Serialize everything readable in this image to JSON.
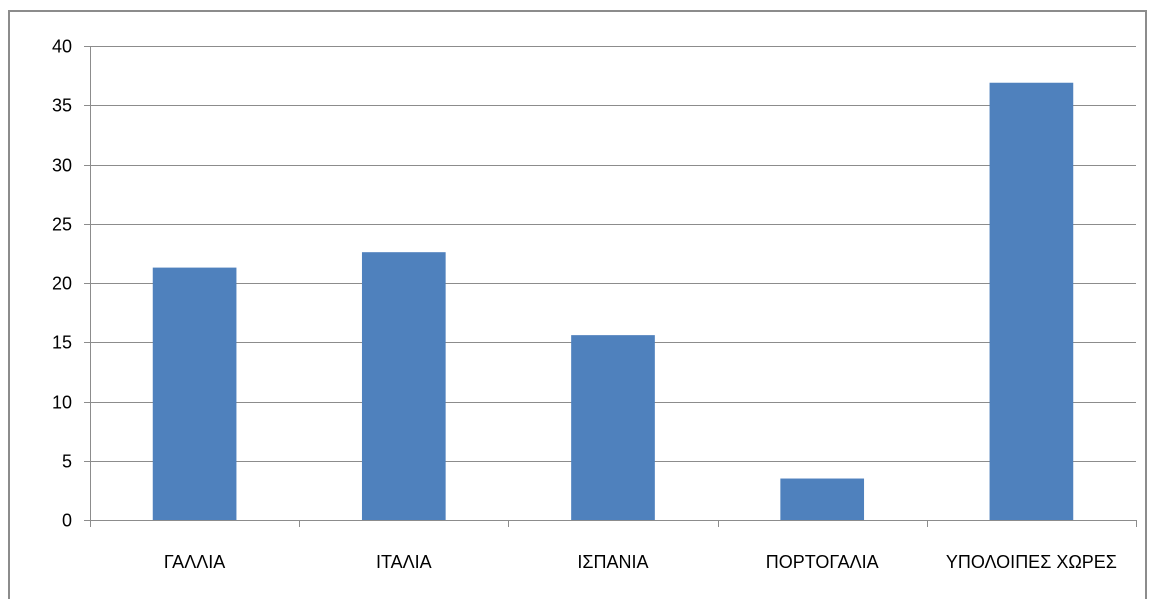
{
  "chart_data": {
    "type": "bar",
    "categories": [
      "ΓΑΛΛΙΑ",
      "ΙΤΑΛΙΑ",
      "ΙΣΠΑΝΙΑ",
      "ΠΟΡΤΟΓΑΛΙΑ",
      "ΥΠΟΛΟΙΠΕΣ ΧΩΡΕΣ"
    ],
    "values": [
      21.3,
      22.6,
      15.6,
      3.5,
      36.9
    ],
    "title": "",
    "xlabel": "",
    "ylabel": "",
    "ylim": [
      0,
      40
    ],
    "yticks": [
      0,
      5,
      10,
      15,
      20,
      25,
      30,
      35,
      40
    ],
    "ytick_labels": [
      "0",
      "5",
      "10",
      "15",
      "20",
      "25",
      "30",
      "35",
      "40"
    ],
    "grid": "horizontal",
    "legend": "none",
    "colors": {
      "bar": "#4f81bd",
      "grid": "#8c8c8c",
      "axis": "#8c8c8c",
      "text": "#000000"
    }
  }
}
